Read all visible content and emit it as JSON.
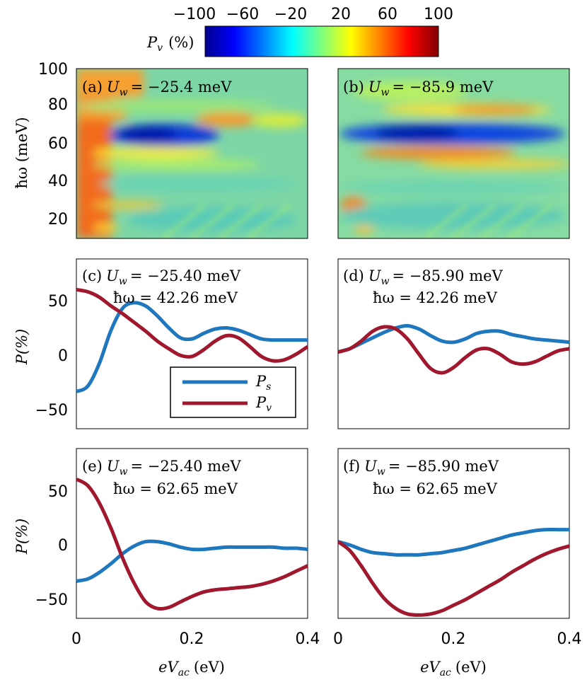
{
  "colorbar": {
    "label_symbol": "P",
    "label_sub": "v",
    "label_unit": "(%)",
    "ticks": [
      "−100",
      "−60",
      "−20",
      "20",
      "60",
      "100"
    ],
    "range": [
      -100,
      100
    ],
    "colormap": "jet"
  },
  "axes_text": {
    "y_top_label": "ħω (meV)",
    "y_top_ticks": [
      "100",
      "80",
      "60",
      "40",
      "20"
    ],
    "y_line_label": "P(%)",
    "y_line_ticks": [
      "50",
      "0",
      "−50"
    ],
    "x_ticks": [
      "0",
      "0.2",
      "0.4"
    ],
    "x_label_left": "eVac (eV)",
    "x_label_right": "eVac (eV)"
  },
  "panels": {
    "a": {
      "tag": "(a)",
      "uw": "U",
      "uw_sub": "w",
      "uw_val": "= −25.4 meV"
    },
    "b": {
      "tag": "(b)",
      "uw": "U",
      "uw_sub": "w",
      "uw_val": "= −85.9 meV"
    },
    "c": {
      "tag": "(c)",
      "uw_val": "= −25.40 meV",
      "hw_val": "ħω = 42.26 meV"
    },
    "d": {
      "tag": "(d)",
      "uw_val": "= −85.90 meV",
      "hw_val": "ħω = 42.26 meV"
    },
    "e": {
      "tag": "(e)",
      "uw_val": "= −25.40 meV",
      "hw_val": "ħω = 62.65 meV"
    },
    "f": {
      "tag": "(f)",
      "uw_val": "= −85.90 meV",
      "hw_val": "ħω = 62.65 meV"
    }
  },
  "legend": {
    "ps_sym": "P",
    "ps_sub": "s",
    "pv_sym": "P",
    "pv_sub": "v"
  },
  "colors": {
    "Ps": "#1f77bd",
    "Pv": "#a0182e",
    "axis": "#000000"
  },
  "chart_data": [
    {
      "panel": "a",
      "type": "heatmap",
      "x_range": [
        0,
        0.4
      ],
      "y_range": [
        10,
        100
      ],
      "ylabel": "ħω (meV)",
      "features": "strong positive Pv (~70-85%) near eVac=0; negative lobe (~-80%) at ħω≈62 meV for eVac 0.05-0.2; positive lobe (~60%) at ħω≈74 meV"
    },
    {
      "panel": "b",
      "type": "heatmap",
      "x_range": [
        0,
        0.4
      ],
      "y_range": [
        10,
        100
      ],
      "features": "negative band (~-85%) at ħω≈62 meV; positive bands (~60-70%) at ħω≈78 and ≈52 meV; hot spot (~75%) near ħω≈27 meV small eVac"
    },
    {
      "panel": "c",
      "type": "line",
      "x_range": [
        0,
        0.4
      ],
      "ylim": [
        -70,
        85
      ],
      "ylabel": "P(%)",
      "legend": [
        "Ps",
        "Pv"
      ],
      "series": [
        {
          "name": "Ps",
          "x": [
            0,
            0.02,
            0.04,
            0.06,
            0.08,
            0.1,
            0.12,
            0.14,
            0.16,
            0.18,
            0.2,
            0.22,
            0.24,
            0.26,
            0.28,
            0.3,
            0.32,
            0.34,
            0.36,
            0.38,
            0.4
          ],
          "y": [
            -36,
            -31,
            -10,
            20,
            40,
            45,
            42,
            33,
            22,
            13,
            12,
            17,
            21,
            22,
            20,
            16,
            12,
            11,
            11,
            11,
            11
          ]
        },
        {
          "name": "Pv",
          "x": [
            0,
            0.02,
            0.04,
            0.06,
            0.08,
            0.1,
            0.12,
            0.14,
            0.16,
            0.18,
            0.2,
            0.22,
            0.24,
            0.26,
            0.28,
            0.3,
            0.32,
            0.34,
            0.36,
            0.38,
            0.4
          ],
          "y": [
            57,
            55,
            50,
            42,
            35,
            27,
            19,
            10,
            3,
            -3,
            -4,
            2,
            10,
            15,
            13,
            5,
            -4,
            -8,
            -7,
            -2,
            5
          ]
        }
      ]
    },
    {
      "panel": "d",
      "type": "line",
      "x_range": [
        0,
        0.4
      ],
      "ylim": [
        -70,
        85
      ],
      "series": [
        {
          "name": "Ps",
          "x": [
            0,
            0.02,
            0.04,
            0.06,
            0.08,
            0.1,
            0.12,
            0.14,
            0.16,
            0.18,
            0.2,
            0.22,
            0.24,
            0.26,
            0.28,
            0.3,
            0.32,
            0.34,
            0.36,
            0.38,
            0.4
          ],
          "y": [
            0,
            3,
            8,
            13,
            18,
            22,
            24,
            21,
            15,
            10,
            9,
            12,
            17,
            19,
            19,
            16,
            14,
            12,
            11,
            10,
            9
          ]
        },
        {
          "name": "Pv",
          "x": [
            0,
            0.02,
            0.04,
            0.06,
            0.08,
            0.1,
            0.12,
            0.14,
            0.16,
            0.18,
            0.2,
            0.22,
            0.24,
            0.26,
            0.28,
            0.3,
            0.32,
            0.34,
            0.36,
            0.38,
            0.4
          ],
          "y": [
            0,
            3,
            10,
            19,
            23,
            21,
            12,
            -2,
            -15,
            -19,
            -14,
            -5,
            2,
            3,
            -2,
            -9,
            -11,
            -9,
            -4,
            1,
            3
          ]
        }
      ]
    },
    {
      "panel": "e",
      "type": "line",
      "x_range": [
        0,
        0.4
      ],
      "ylim": [
        -70,
        85
      ],
      "ylabel": "P(%)",
      "xlabel": "eVac (eV)",
      "series": [
        {
          "name": "Ps",
          "x": [
            0,
            0.02,
            0.04,
            0.06,
            0.08,
            0.1,
            0.12,
            0.14,
            0.16,
            0.18,
            0.2,
            0.22,
            0.24,
            0.26,
            0.28,
            0.3,
            0.32,
            0.34,
            0.36,
            0.38,
            0.4
          ],
          "y": [
            -36,
            -34,
            -28,
            -20,
            -11,
            -4,
            0,
            0,
            -2,
            -5,
            -7,
            -7,
            -6,
            -5,
            -5,
            -5,
            -5,
            -5,
            -6,
            -6,
            -7
          ]
        },
        {
          "name": "Pv",
          "x": [
            0,
            0.02,
            0.04,
            0.06,
            0.08,
            0.1,
            0.12,
            0.14,
            0.16,
            0.18,
            0.2,
            0.22,
            0.24,
            0.26,
            0.28,
            0.3,
            0.32,
            0.34,
            0.36,
            0.38,
            0.4
          ],
          "y": [
            57,
            51,
            35,
            12,
            -15,
            -38,
            -55,
            -61,
            -60,
            -55,
            -50,
            -46,
            -44,
            -43,
            -42,
            -41,
            -39,
            -36,
            -32,
            -27,
            -22
          ]
        }
      ]
    },
    {
      "panel": "f",
      "type": "line",
      "x_range": [
        0,
        0.4
      ],
      "ylim": [
        -70,
        85
      ],
      "xlabel": "eVac (eV)",
      "series": [
        {
          "name": "Ps",
          "x": [
            0,
            0.02,
            0.04,
            0.06,
            0.08,
            0.1,
            0.12,
            0.14,
            0.16,
            0.18,
            0.2,
            0.22,
            0.24,
            0.26,
            0.28,
            0.3,
            0.32,
            0.34,
            0.36,
            0.38,
            0.4
          ],
          "y": [
            0,
            -3,
            -7,
            -10,
            -11,
            -12,
            -12,
            -12,
            -11,
            -10,
            -8,
            -6,
            -3,
            0,
            3,
            6,
            8,
            10,
            11,
            11,
            11
          ]
        },
        {
          "name": "Pv",
          "x": [
            0,
            0.02,
            0.04,
            0.06,
            0.08,
            0.1,
            0.12,
            0.14,
            0.16,
            0.18,
            0.2,
            0.22,
            0.24,
            0.26,
            0.28,
            0.3,
            0.32,
            0.34,
            0.36,
            0.38,
            0.4
          ],
          "y": [
            0,
            -8,
            -22,
            -38,
            -52,
            -61,
            -66,
            -67,
            -66,
            -63,
            -58,
            -53,
            -47,
            -41,
            -35,
            -28,
            -22,
            -16,
            -11,
            -7,
            -4
          ]
        }
      ]
    }
  ]
}
